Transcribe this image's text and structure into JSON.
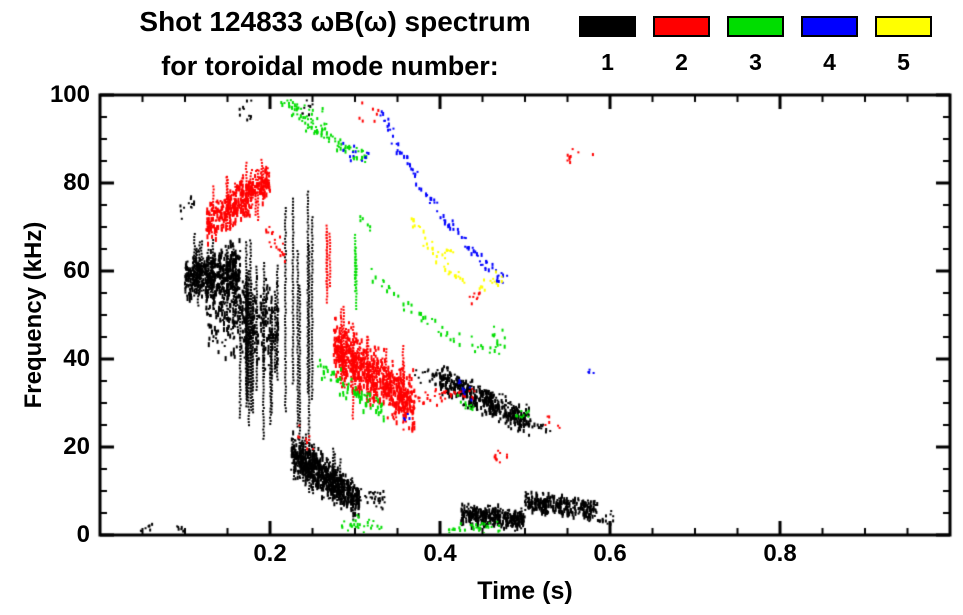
{
  "chart_data": {
    "type": "scatter",
    "title_line1": "Shot 124833 ωB(ω) spectrum",
    "title_line2": "for toroidal mode number:",
    "xlabel": "Time (s)",
    "ylabel": "Frequency (kHz)",
    "xlim": [
      0,
      1.0
    ],
    "ylim": [
      0,
      100
    ],
    "xticks": [
      {
        "value": 0.2,
        "label": "0.2"
      },
      {
        "value": 0.4,
        "label": "0.4"
      },
      {
        "value": 0.6,
        "label": "0.6"
      },
      {
        "value": 0.8,
        "label": "0.8"
      }
    ],
    "yticks": [
      {
        "value": 0,
        "label": "0"
      },
      {
        "value": 20,
        "label": "20"
      },
      {
        "value": 40,
        "label": "40"
      },
      {
        "value": 60,
        "label": "60"
      },
      {
        "value": 80,
        "label": "80"
      },
      {
        "value": 100,
        "label": "100"
      }
    ],
    "x_minor_step": 0.05,
    "y_minor_step": 5,
    "legend": [
      {
        "label": "1",
        "color": "#000000"
      },
      {
        "label": "2",
        "color": "#ff0000"
      },
      {
        "label": "3",
        "color": "#00dd00"
      },
      {
        "label": "4",
        "color": "#0000ff"
      },
      {
        "label": "5",
        "color": "#ffff00"
      }
    ],
    "clusters": [
      {
        "mode": 1,
        "kind": "blob",
        "t": [
          0.1,
          0.165
        ],
        "f": [
          58,
          61
        ],
        "spread": 5,
        "n": 420
      },
      {
        "mode": 1,
        "kind": "blob",
        "t": [
          0.125,
          0.21
        ],
        "f": [
          53,
          47
        ],
        "spread": 9,
        "n": 400
      },
      {
        "mode": 1,
        "kind": "streaks",
        "t": [
          0.16,
          0.215
        ],
        "f": [
          46,
          40
        ],
        "spread": 10,
        "len": [
          15,
          38
        ],
        "n": 20
      },
      {
        "mode": 1,
        "kind": "streaks",
        "t": [
          0.103,
          0.16
        ],
        "f": [
          60,
          58
        ],
        "spread": 5,
        "len": [
          8,
          16
        ],
        "n": 14
      },
      {
        "mode": 1,
        "kind": "streaks",
        "t": [
          0.218,
          0.25
        ],
        "f": [
          52,
          50
        ],
        "spread": 14,
        "len": [
          28,
          55
        ],
        "n": 7
      },
      {
        "mode": 1,
        "kind": "dots",
        "t": [
          0.094,
          0.112
        ],
        "f": [
          74,
          76
        ],
        "spread": 2,
        "n": 12
      },
      {
        "mode": 1,
        "kind": "dots",
        "t": [
          0.163,
          0.178
        ],
        "f": [
          96,
          97
        ],
        "spread": 3,
        "n": 10
      },
      {
        "mode": 1,
        "kind": "dots",
        "t": [
          0.236,
          0.252
        ],
        "f": [
          97,
          96
        ],
        "spread": 2.5,
        "n": 8
      },
      {
        "mode": 1,
        "kind": "blob",
        "t": [
          0.225,
          0.305
        ],
        "f": [
          19,
          8
        ],
        "spread": 4,
        "n": 650
      },
      {
        "mode": 1,
        "kind": "streaks",
        "t": [
          0.228,
          0.3
        ],
        "f": [
          18,
          9
        ],
        "spread": 3,
        "len": [
          5,
          12
        ],
        "n": 16
      },
      {
        "mode": 1,
        "kind": "dots",
        "t": [
          0.3,
          0.335
        ],
        "f": [
          10,
          8
        ],
        "spread": 2,
        "n": 35
      },
      {
        "mode": 1,
        "kind": "blob",
        "t": [
          0.4,
          0.505
        ],
        "f": [
          36,
          26
        ],
        "spread": 3,
        "n": 420
      },
      {
        "mode": 1,
        "kind": "dots",
        "t": [
          0.37,
          0.405
        ],
        "f": [
          37,
          36
        ],
        "spread": 2,
        "n": 25
      },
      {
        "mode": 1,
        "kind": "dots",
        "t": [
          0.503,
          0.53
        ],
        "f": [
          26,
          24
        ],
        "spread": 1.5,
        "n": 18
      },
      {
        "mode": 1,
        "kind": "blob",
        "t": [
          0.425,
          0.5
        ],
        "f": [
          5,
          4
        ],
        "spread": 2.2,
        "n": 330
      },
      {
        "mode": 1,
        "kind": "blob",
        "t": [
          0.5,
          0.585
        ],
        "f": [
          8,
          6
        ],
        "spread": 2.2,
        "n": 280
      },
      {
        "mode": 1,
        "kind": "dots",
        "t": [
          0.583,
          0.605
        ],
        "f": [
          4,
          4
        ],
        "spread": 1.5,
        "n": 15
      },
      {
        "mode": 1,
        "kind": "dots",
        "t": [
          0.045,
          0.062
        ],
        "f": [
          2,
          2
        ],
        "spread": 1,
        "n": 8
      },
      {
        "mode": 1,
        "kind": "dots",
        "t": [
          0.088,
          0.1
        ],
        "f": [
          1.5,
          1.5
        ],
        "spread": 0.8,
        "n": 6
      },
      {
        "mode": 2,
        "kind": "blob",
        "t": [
          0.125,
          0.2
        ],
        "f": [
          71,
          81
        ],
        "spread": 4,
        "n": 380
      },
      {
        "mode": 2,
        "kind": "streaks",
        "t": [
          0.13,
          0.195
        ],
        "f": [
          72,
          80
        ],
        "spread": 3.5,
        "len": [
          6,
          13
        ],
        "n": 12
      },
      {
        "mode": 2,
        "kind": "dots",
        "t": [
          0.195,
          0.218
        ],
        "f": [
          70,
          64
        ],
        "spread": 2.5,
        "n": 22
      },
      {
        "mode": 2,
        "kind": "blob",
        "t": [
          0.275,
          0.37
        ],
        "f": [
          43,
          30
        ],
        "spread": 6,
        "n": 700
      },
      {
        "mode": 2,
        "kind": "streaks",
        "t": [
          0.28,
          0.36
        ],
        "f": [
          42,
          31
        ],
        "spread": 5,
        "len": [
          8,
          18
        ],
        "n": 16
      },
      {
        "mode": 2,
        "kind": "streaks",
        "t": [
          0.262,
          0.272
        ],
        "f": [
          62,
          62
        ],
        "spread": 5,
        "len": [
          10,
          20
        ],
        "n": 3
      },
      {
        "mode": 2,
        "kind": "dots",
        "t": [
          0.37,
          0.445
        ],
        "f": [
          31,
          33
        ],
        "spread": 2,
        "n": 40
      },
      {
        "mode": 2,
        "kind": "dots",
        "t": [
          0.432,
          0.447
        ],
        "f": [
          54,
          55
        ],
        "spread": 1.5,
        "n": 8
      },
      {
        "mode": 2,
        "kind": "dots",
        "t": [
          0.46,
          0.487
        ],
        "f": [
          17,
          19
        ],
        "spread": 1.5,
        "n": 10
      },
      {
        "mode": 2,
        "kind": "dots",
        "t": [
          0.545,
          0.585
        ],
        "f": [
          86,
          88
        ],
        "spread": 2,
        "n": 9
      },
      {
        "mode": 2,
        "kind": "dots",
        "t": [
          0.295,
          0.33
        ],
        "f": [
          95,
          97
        ],
        "spread": 2.5,
        "n": 7
      },
      {
        "mode": 2,
        "kind": "dots",
        "t": [
          0.23,
          0.252
        ],
        "f": [
          24,
          20
        ],
        "spread": 2,
        "n": 9
      },
      {
        "mode": 2,
        "kind": "dots",
        "t": [
          0.52,
          0.545
        ],
        "f": [
          26,
          25
        ],
        "spread": 1.5,
        "n": 6
      },
      {
        "mode": 3,
        "kind": "arc",
        "t": [
          0.215,
          0.315
        ],
        "f": [
          100,
          86
        ],
        "curve": -2,
        "gap": 0.15,
        "n": 95
      },
      {
        "mode": 3,
        "kind": "dots",
        "t": [
          0.222,
          0.268
        ],
        "f": [
          96,
          93
        ],
        "spread": 3,
        "n": 25
      },
      {
        "mode": 3,
        "kind": "arc",
        "t": [
          0.31,
          0.475
        ],
        "f": [
          62,
          42
        ],
        "curve": -4,
        "gap": 0.3,
        "n": 70
      },
      {
        "mode": 3,
        "kind": "blob",
        "t": [
          0.255,
          0.335
        ],
        "f": [
          39,
          28
        ],
        "spread": 2.6,
        "n": 70
      },
      {
        "mode": 3,
        "kind": "dots",
        "t": [
          0.283,
          0.335
        ],
        "f": [
          3,
          2
        ],
        "spread": 1.8,
        "n": 30
      },
      {
        "mode": 3,
        "kind": "dots",
        "t": [
          0.41,
          0.476
        ],
        "f": [
          2,
          2
        ],
        "spread": 1.6,
        "n": 35
      },
      {
        "mode": 3,
        "kind": "dots",
        "t": [
          0.487,
          0.505
        ],
        "f": [
          27,
          28
        ],
        "spread": 1.6,
        "n": 9
      },
      {
        "mode": 3,
        "kind": "dots",
        "t": [
          0.458,
          0.48
        ],
        "f": [
          45,
          46
        ],
        "spread": 2,
        "n": 10
      },
      {
        "mode": 3,
        "kind": "streaks",
        "t": [
          0.296,
          0.306
        ],
        "f": [
          60,
          60
        ],
        "spread": 4,
        "len": [
          8,
          14
        ],
        "n": 3
      },
      {
        "mode": 3,
        "kind": "dots",
        "t": [
          0.42,
          0.442
        ],
        "f": [
          31,
          29
        ],
        "spread": 1.6,
        "n": 10
      },
      {
        "mode": 3,
        "kind": "dots",
        "t": [
          0.302,
          0.318
        ],
        "f": [
          73,
          71
        ],
        "spread": 2,
        "n": 6
      },
      {
        "mode": 4,
        "kind": "arc",
        "t": [
          0.33,
          0.476
        ],
        "f": [
          96,
          58
        ],
        "curve": -4,
        "gap": 0.25,
        "n": 110
      },
      {
        "mode": 4,
        "kind": "dots",
        "t": [
          0.286,
          0.316
        ],
        "f": [
          88,
          86
        ],
        "spread": 2.6,
        "n": 13
      },
      {
        "mode": 4,
        "kind": "dots",
        "t": [
          0.415,
          0.44
        ],
        "f": [
          35,
          32
        ],
        "spread": 1.8,
        "n": 9
      },
      {
        "mode": 4,
        "kind": "dots",
        "t": [
          0.466,
          0.479
        ],
        "f": [
          58,
          59
        ],
        "spread": 1.5,
        "n": 6
      },
      {
        "mode": 4,
        "kind": "dots",
        "t": [
          0.57,
          0.582
        ],
        "f": [
          37,
          37
        ],
        "spread": 1,
        "n": 4
      },
      {
        "mode": 4,
        "kind": "dots",
        "t": [
          0.355,
          0.372
        ],
        "f": [
          26,
          27
        ],
        "spread": 1.2,
        "n": 5
      },
      {
        "mode": 5,
        "kind": "arc",
        "t": [
          0.365,
          0.428
        ],
        "f": [
          73,
          58
        ],
        "curve": -2,
        "gap": 0.2,
        "n": 42
      },
      {
        "mode": 5,
        "kind": "dots",
        "t": [
          0.444,
          0.473
        ],
        "f": [
          56,
          59
        ],
        "spread": 1.8,
        "n": 14
      },
      {
        "mode": 5,
        "kind": "dots",
        "t": [
          0.398,
          0.416
        ],
        "f": [
          64,
          65
        ],
        "spread": 1.5,
        "n": 9
      }
    ]
  }
}
